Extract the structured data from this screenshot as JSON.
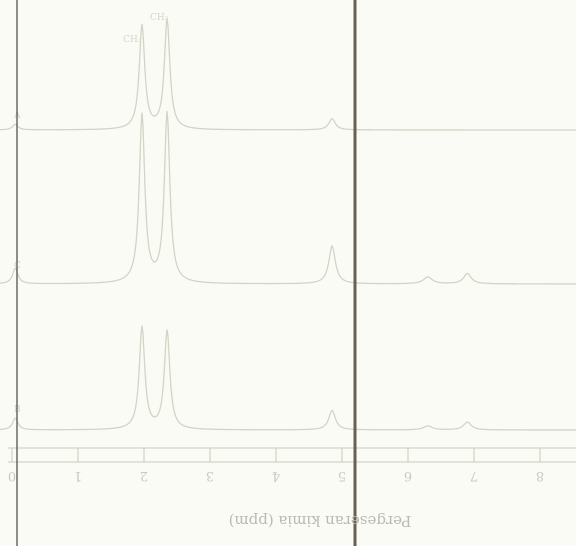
{
  "chart_data": {
    "type": "line",
    "title": "",
    "xlabel": "Pergeseran kimia (ppm)",
    "ylabel": "",
    "xlim": [
      0,
      8
    ],
    "x_reversed": true,
    "grid": false,
    "x_ticks": [
      0,
      1,
      2,
      3,
      4,
      5,
      6,
      7,
      8
    ],
    "x_tick_labels": [
      "0",
      "1",
      "2",
      "3",
      "4",
      "5",
      "6",
      "7",
      "8"
    ],
    "peak_labels": [
      "CH₃",
      "CH₃"
    ],
    "series": [
      {
        "name": "A",
        "peaks": [
          {
            "x": 2.35,
            "height": 0.98,
            "width": 0.05
          },
          {
            "x": 1.97,
            "height": 0.93,
            "width": 0.05
          },
          {
            "x": 4.85,
            "height": 0.1,
            "width": 0.06
          },
          {
            "x": 0.05,
            "height": 0.05,
            "width": 0.05
          }
        ]
      },
      {
        "name": "C",
        "peaks": [
          {
            "x": 2.35,
            "height": 0.99,
            "width": 0.05
          },
          {
            "x": 1.97,
            "height": 0.98,
            "width": 0.05
          },
          {
            "x": 4.85,
            "height": 0.22,
            "width": 0.06
          },
          {
            "x": 6.3,
            "height": 0.04,
            "width": 0.08
          },
          {
            "x": 6.9,
            "height": 0.06,
            "width": 0.07
          },
          {
            "x": 0.05,
            "height": 0.09,
            "width": 0.05
          }
        ]
      },
      {
        "name": "B",
        "peaks": [
          {
            "x": 2.35,
            "height": 0.76,
            "width": 0.05
          },
          {
            "x": 1.97,
            "height": 0.79,
            "width": 0.05
          },
          {
            "x": 4.85,
            "height": 0.15,
            "width": 0.06
          },
          {
            "x": 6.3,
            "height": 0.03,
            "width": 0.08
          },
          {
            "x": 6.9,
            "height": 0.06,
            "width": 0.07
          },
          {
            "x": 0.05,
            "height": 0.09,
            "width": 0.05
          }
        ]
      }
    ]
  },
  "colors": {
    "trace": "#cfd6c4",
    "background": "#fbfbf6",
    "divider": "#6b5e55"
  }
}
